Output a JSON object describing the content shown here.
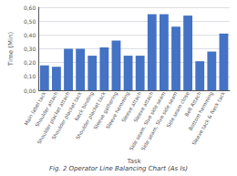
{
  "chart_data": {
    "type": "bar",
    "title": "Fig. 2 Operator Line Balancing Chart (As Is)",
    "xlabel": "Task",
    "ylabel": "Time (Min)",
    "categories": [
      "Main label tack",
      "Shoulder attach",
      "Shoulder placket attach",
      "Shoulder placket tack",
      "Neck binding",
      "Shoulder placket tack",
      "Sleeve gathering",
      "Sleeve hemming",
      "Sleeve attach",
      "Sleeve attach",
      "Side seam, Slve side seam",
      "Side seam, Slve side seam",
      "Side seam close",
      "Belt Attach",
      "Bottom hemming",
      "Sleeve tack & Neck tack"
    ],
    "values": [
      0.18,
      0.17,
      0.3,
      0.3,
      0.25,
      0.31,
      0.36,
      0.25,
      0.25,
      0.55,
      0.55,
      0.46,
      0.54,
      0.21,
      0.28,
      0.41
    ],
    "color": "#4472C4",
    "ylim": [
      0,
      0.6
    ],
    "yticks": [
      {
        "value": 0.0,
        "label": "0,00"
      },
      {
        "value": 0.1,
        "label": "0,10"
      },
      {
        "value": 0.2,
        "label": "0,20"
      },
      {
        "value": 0.3,
        "label": "0,30"
      },
      {
        "value": 0.4,
        "label": "0,40"
      },
      {
        "value": 0.5,
        "label": "0,50"
      },
      {
        "value": 0.6,
        "label": "0,60"
      }
    ],
    "grid": true
  }
}
